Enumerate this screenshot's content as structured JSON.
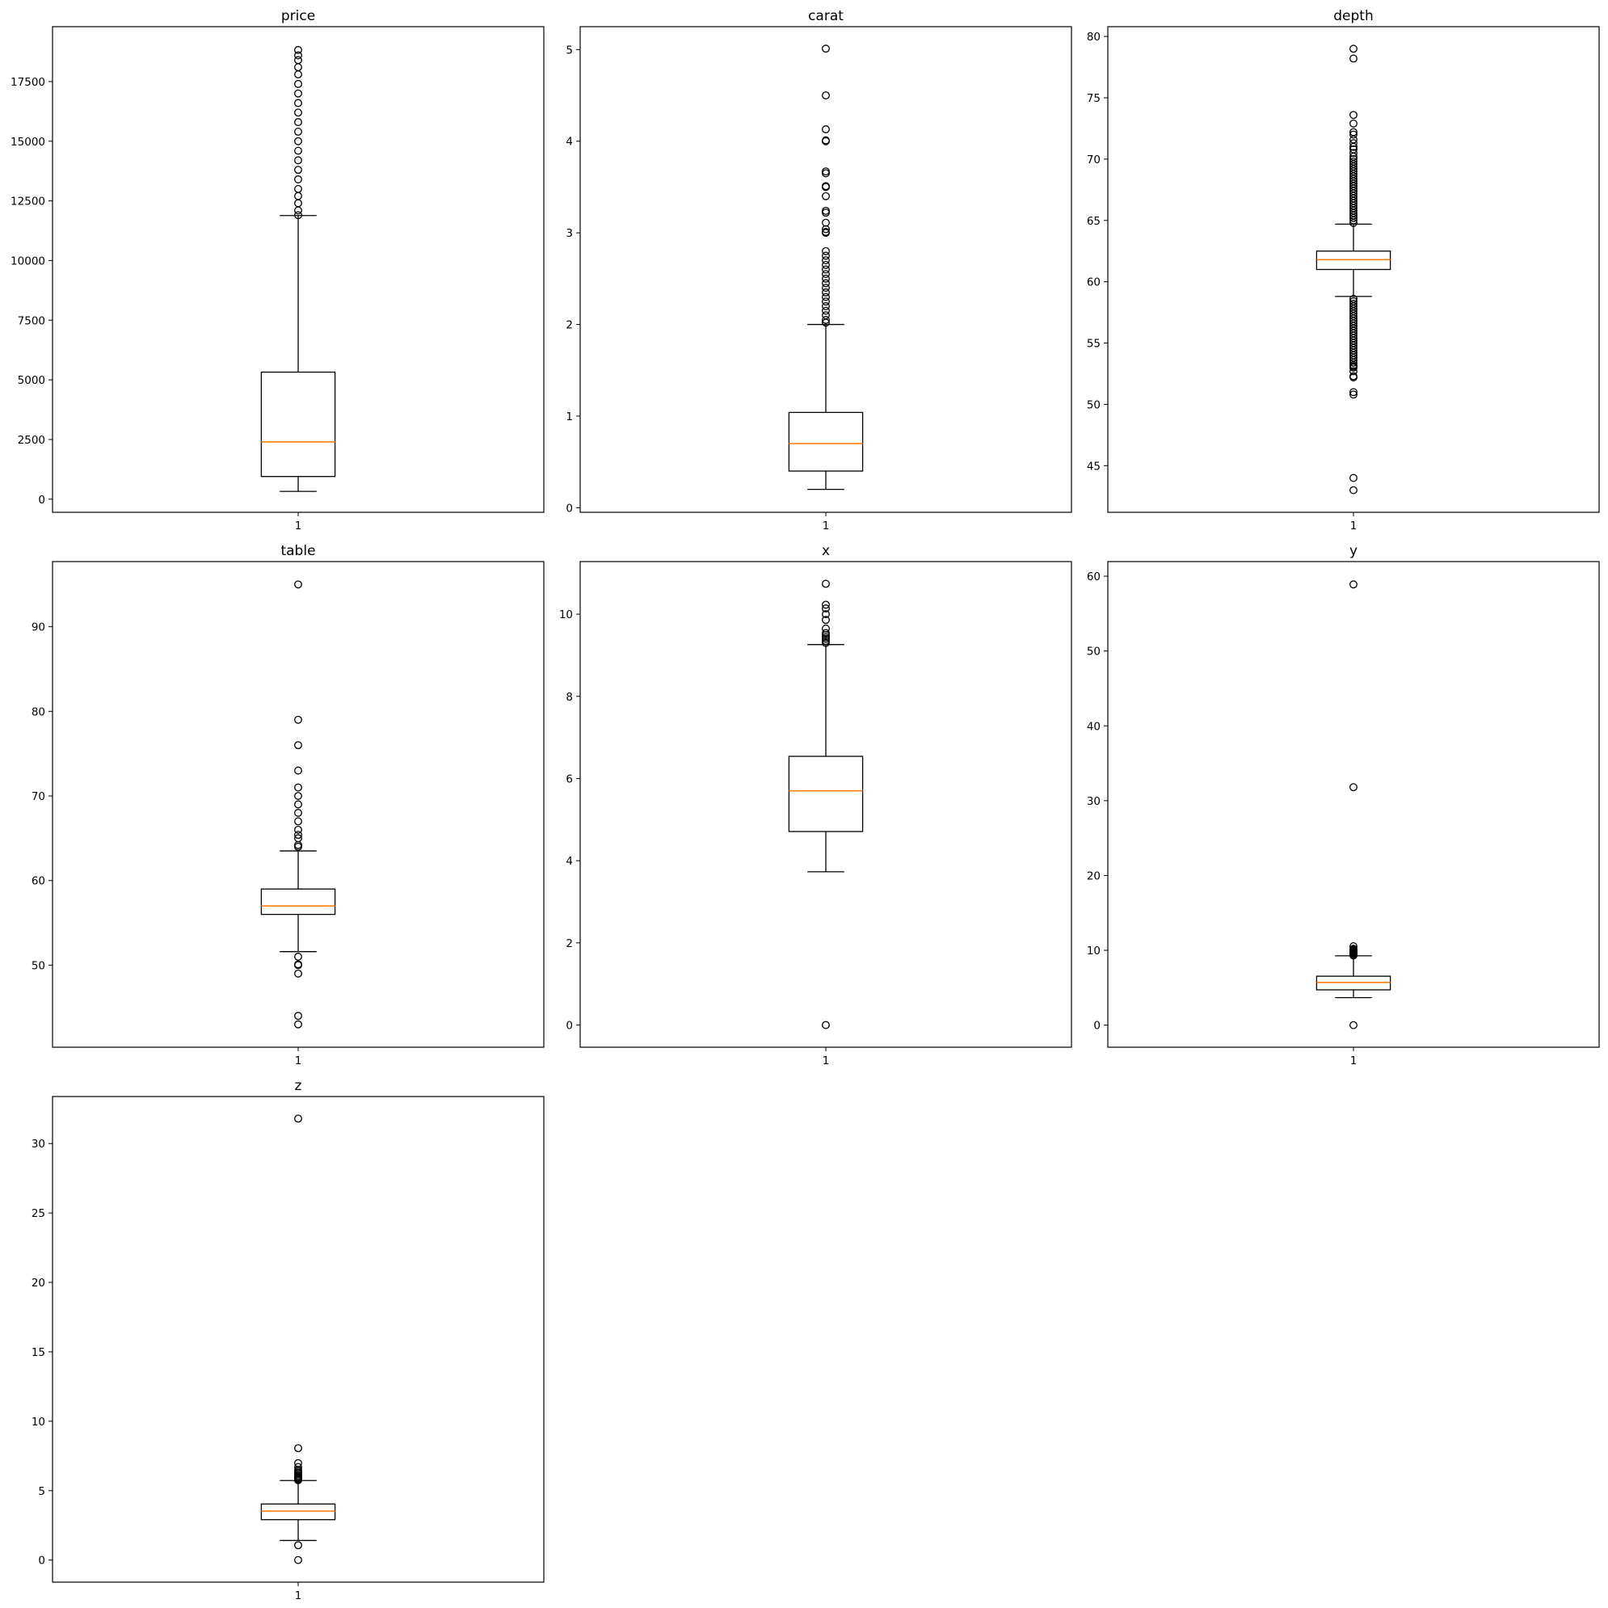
{
  "colors": {
    "box": "#000000",
    "median": "#ff7f0e",
    "flier": "#000000",
    "background": "#ffffff"
  },
  "chart_data": [
    {
      "type": "box",
      "title": "price",
      "categories": [
        "1"
      ],
      "ylim": [
        -550,
        19800
      ],
      "yticks": [
        0,
        2500,
        5000,
        7500,
        10000,
        12500,
        15000,
        17500
      ],
      "box": {
        "whislo": 326,
        "q1": 950,
        "med": 2401,
        "q3": 5324,
        "whishi": 11886
      },
      "fliers": [
        11900,
        12100,
        12400,
        12700,
        13000,
        13400,
        13800,
        14200,
        14600,
        15000,
        15400,
        15800,
        16200,
        16600,
        17000,
        17400,
        17800,
        18100,
        18400,
        18600,
        18823
      ]
    },
    {
      "type": "box",
      "title": "carat",
      "categories": [
        "1"
      ],
      "ylim": [
        -0.05,
        5.25
      ],
      "yticks": [
        0,
        1,
        2,
        3,
        4,
        5
      ],
      "box": {
        "whislo": 0.2,
        "q1": 0.4,
        "med": 0.7,
        "q3": 1.04,
        "whishi": 2.0
      },
      "fliers": [
        2.02,
        2.05,
        2.1,
        2.15,
        2.2,
        2.25,
        2.3,
        2.35,
        2.4,
        2.45,
        2.5,
        2.55,
        2.6,
        2.65,
        2.7,
        2.75,
        2.8,
        3.0,
        3.01,
        3.04,
        3.11,
        3.22,
        3.24,
        3.4,
        3.5,
        3.51,
        3.65,
        3.67,
        4.0,
        4.01,
        4.13,
        4.5,
        5.01
      ]
    },
    {
      "type": "box",
      "title": "depth",
      "categories": [
        "1"
      ],
      "ylim": [
        41.2,
        80.8
      ],
      "yticks": [
        45,
        50,
        55,
        60,
        65,
        70,
        75,
        80
      ],
      "box": {
        "whislo": 58.8,
        "q1": 61.0,
        "med": 61.8,
        "q3": 62.5,
        "whishi": 64.7
      },
      "fliers": [
        43.0,
        44.0,
        50.8,
        51.0,
        52.2,
        52.3,
        52.7,
        53.0,
        53.1,
        53.2,
        53.4,
        53.6,
        53.8,
        54.0,
        54.2,
        54.4,
        54.6,
        54.8,
        55.0,
        55.2,
        55.4,
        55.6,
        55.8,
        56.0,
        56.2,
        56.4,
        56.6,
        56.8,
        57.0,
        57.2,
        57.4,
        57.6,
        57.8,
        58.0,
        58.2,
        58.4,
        58.6,
        64.8,
        65.0,
        65.2,
        65.4,
        65.6,
        65.8,
        66.0,
        66.2,
        66.4,
        66.6,
        66.8,
        67.0,
        67.2,
        67.4,
        67.6,
        67.8,
        68.0,
        68.2,
        68.4,
        68.6,
        68.8,
        69.0,
        69.2,
        69.4,
        69.6,
        69.8,
        70.0,
        70.2,
        70.5,
        70.8,
        71.0,
        71.3,
        71.6,
        72.0,
        72.2,
        72.9,
        73.6,
        78.2,
        79.0
      ]
    },
    {
      "type": "box",
      "title": "table",
      "categories": [
        "1"
      ],
      "ylim": [
        40.3,
        97.7
      ],
      "yticks": [
        50,
        60,
        70,
        80,
        90
      ],
      "box": {
        "whislo": 51.6,
        "q1": 56.0,
        "med": 57.0,
        "q3": 59.0,
        "whishi": 63.5
      },
      "fliers": [
        43.0,
        44.0,
        49.0,
        50.0,
        50.1,
        51.0,
        64.0,
        64.2,
        65.0,
        65.4,
        66.0,
        67.0,
        68.0,
        69.0,
        70.0,
        71.0,
        73.0,
        76.0,
        79.0,
        95.0
      ]
    },
    {
      "type": "box",
      "title": "x",
      "categories": [
        "1"
      ],
      "ylim": [
        -0.54,
        11.28
      ],
      "yticks": [
        0,
        2,
        4,
        6,
        8,
        10
      ],
      "box": {
        "whislo": 3.73,
        "q1": 4.71,
        "med": 5.7,
        "q3": 6.54,
        "whishi": 9.26
      },
      "fliers": [
        0.0,
        9.3,
        9.35,
        9.4,
        9.44,
        9.49,
        9.54,
        9.65,
        9.86,
        10.0,
        10.14,
        10.23,
        10.74
      ]
    },
    {
      "type": "box",
      "title": "y",
      "categories": [
        "1"
      ],
      "ylim": [
        -2.95,
        61.95
      ],
      "yticks": [
        0,
        10,
        20,
        30,
        40,
        50,
        60
      ],
      "box": {
        "whislo": 3.68,
        "q1": 4.72,
        "med": 5.71,
        "q3": 6.54,
        "whishi": 9.27
      },
      "fliers": [
        0.0,
        9.3,
        9.4,
        9.5,
        9.6,
        9.7,
        9.8,
        9.9,
        10.0,
        10.1,
        10.2,
        10.54,
        31.8,
        58.9
      ]
    },
    {
      "type": "box",
      "title": "z",
      "categories": [
        "1"
      ],
      "ylim": [
        -1.59,
        33.39
      ],
      "yticks": [
        0,
        5,
        10,
        15,
        20,
        25,
        30
      ],
      "box": {
        "whislo": 1.41,
        "q1": 2.91,
        "med": 3.53,
        "q3": 4.04,
        "whishi": 5.73
      },
      "fliers": [
        0.0,
        1.07,
        5.75,
        5.8,
        5.85,
        5.9,
        5.95,
        6.0,
        6.1,
        6.2,
        6.3,
        6.4,
        6.5,
        6.7,
        6.98,
        8.06,
        31.8
      ]
    }
  ]
}
